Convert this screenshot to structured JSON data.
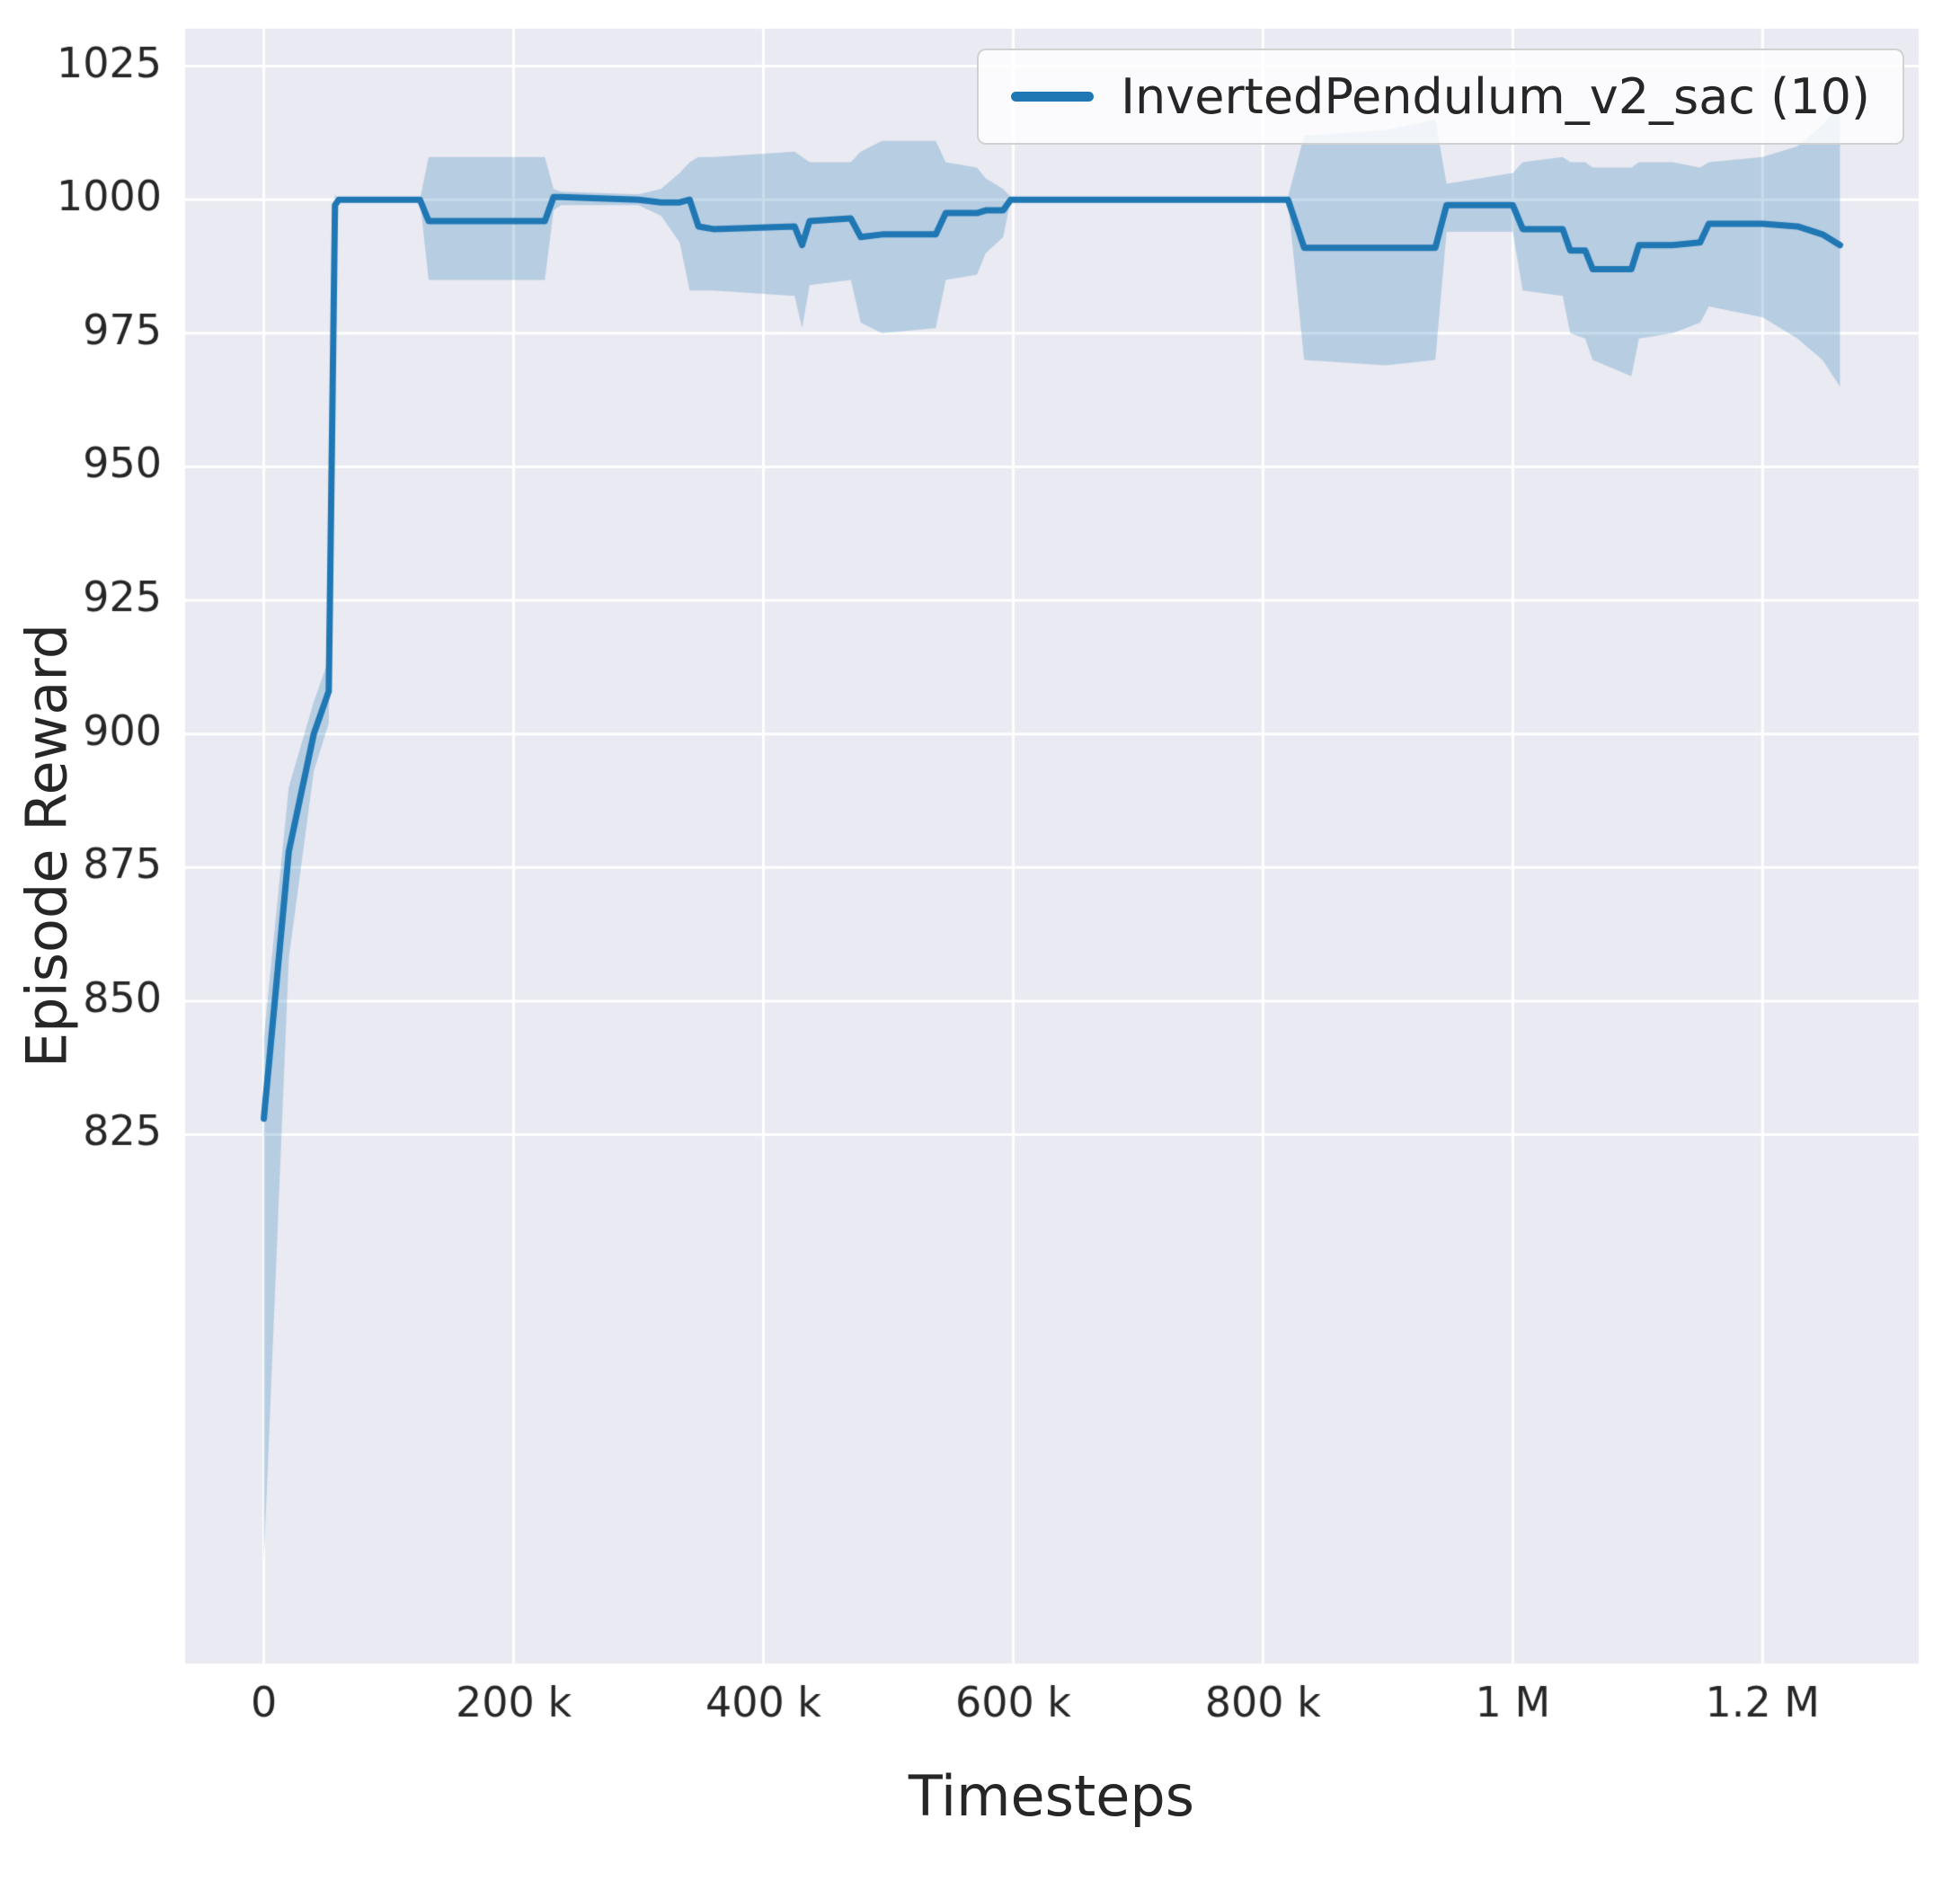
{
  "chart_data": {
    "type": "line",
    "title": "",
    "xlabel": "Timesteps",
    "ylabel": "Episode Reward",
    "xlim": [
      -63000,
      1325000
    ],
    "ylim": [
      726,
      1032
    ],
    "grid": true,
    "legend_position": "upper right",
    "x_ticks": {
      "values": [
        0,
        200000,
        400000,
        600000,
        800000,
        1000000,
        1200000
      ],
      "labels": [
        "0",
        "200 k",
        "400 k",
        "600 k",
        "800 k",
        "1 M",
        "1.2 M"
      ]
    },
    "y_ticks": {
      "values": [
        825,
        850,
        875,
        900,
        925,
        950,
        975,
        1000,
        1025
      ],
      "labels": [
        "825",
        "850",
        "875",
        "900",
        "925",
        "950",
        "975",
        "1000",
        "1025"
      ]
    },
    "colors": {
      "figure_bg": "#ffffff",
      "axes_bg": "#eaeaf2",
      "grid": "#ffffff",
      "tick_text": "#262626"
    },
    "series": [
      {
        "name": "InvertedPendulum_v2_sac (10)",
        "color": "#1f77b4",
        "band_color": "rgba(31,119,180,0.25)",
        "x": [
          0,
          20000,
          40000,
          52000,
          57000,
          60000,
          125000,
          132000,
          225000,
          232000,
          238000,
          300000,
          318000,
          333000,
          341000,
          348000,
          360000,
          425000,
          431000,
          437000,
          470000,
          478000,
          495000,
          538000,
          546000,
          571000,
          578000,
          592000,
          598000,
          820000,
          833000,
          898000,
          938000,
          947000,
          1000000,
          1008000,
          1040000,
          1046000,
          1058000,
          1064000,
          1095000,
          1101000,
          1128000,
          1150000,
          1157000,
          1200000,
          1228000,
          1248000,
          1262000
        ],
        "mean": [
          828,
          878,
          900,
          908,
          999,
          1000,
          1000,
          996,
          996,
          1000.5,
          1000.5,
          1000,
          999.5,
          999.5,
          1000,
          995,
          994.5,
          995,
          991.5,
          996,
          996.5,
          993,
          993.5,
          993.5,
          997.5,
          997.5,
          998,
          998,
          1000,
          1000,
          991,
          991,
          991,
          999,
          999,
          994.5,
          994.5,
          990.5,
          990.5,
          987,
          987,
          991.5,
          991.5,
          992,
          995.5,
          995.5,
          995,
          993.5,
          991.5
        ],
        "lower": [
          745,
          858,
          893,
          902,
          996,
          1000,
          1000,
          985,
          985,
          998,
          999,
          999,
          997,
          992,
          983,
          983,
          983,
          982,
          976,
          984,
          985,
          977,
          975,
          976,
          985,
          986,
          990,
          993,
          1000,
          1000,
          970,
          969,
          970,
          994,
          994,
          983,
          982,
          975,
          974,
          970,
          967,
          974,
          975,
          977,
          980,
          978,
          974,
          970,
          965
        ],
        "upper": [
          843,
          890,
          906,
          914,
          1001,
          1000,
          1000,
          1008,
          1008,
          1002,
          1001.5,
          1001,
          1002,
          1005,
          1007,
          1008,
          1008,
          1009,
          1008,
          1007,
          1007,
          1009,
          1011,
          1011,
          1007,
          1006,
          1004,
          1002,
          1000.5,
          1000.5,
          1012,
          1013,
          1015,
          1003,
          1005,
          1007,
          1008,
          1007,
          1007,
          1006,
          1006,
          1007,
          1007,
          1006,
          1007,
          1008,
          1010,
          1014,
          1018
        ]
      }
    ]
  }
}
